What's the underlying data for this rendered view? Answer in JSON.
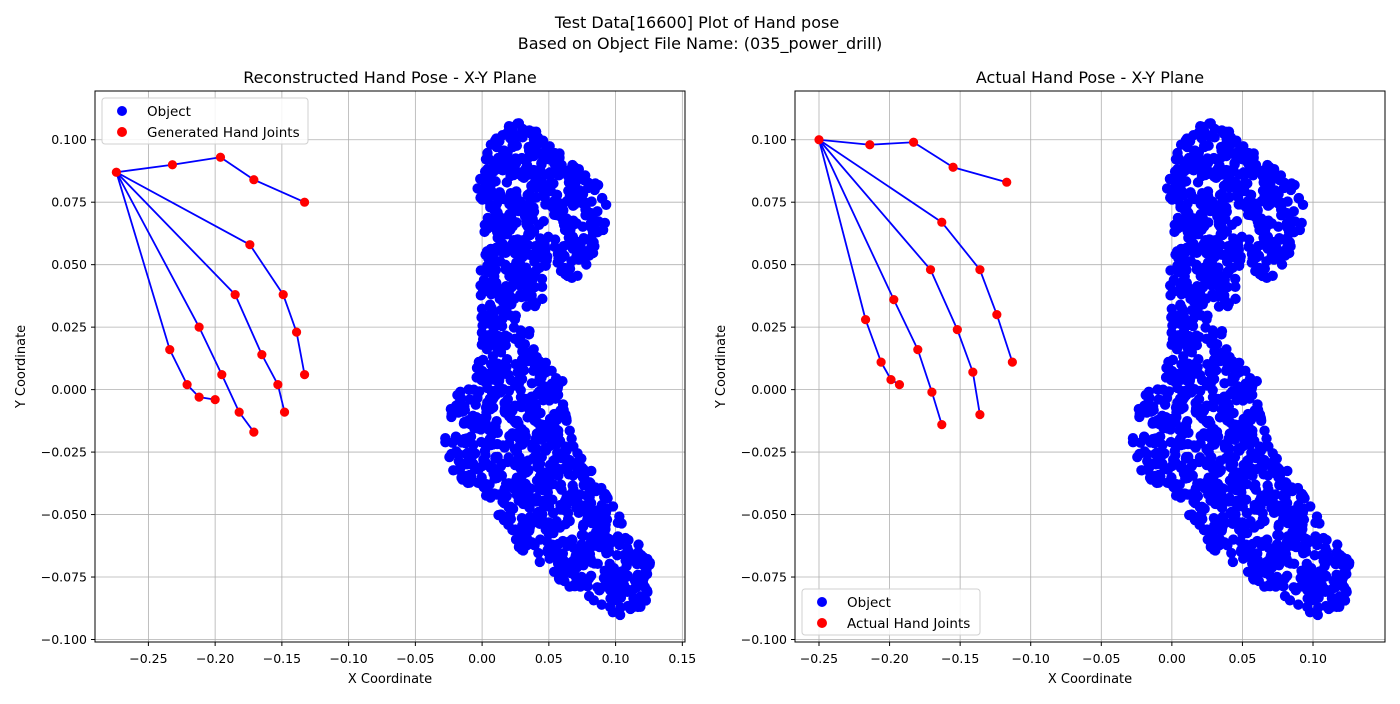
{
  "figure": {
    "title_line1": "Test Data[16600] Plot of Hand pose",
    "title_line2": "Based on Object File Name: (035_power_drill)"
  },
  "colors": {
    "object": "#0000ff",
    "joints": "#ff0000",
    "bones": "#0000ff",
    "grid": "#b0b0b0"
  },
  "chart_data": [
    {
      "type": "scatter",
      "title": "Reconstructed Hand Pose - X-Y Plane",
      "xlabel": "X Coordinate",
      "ylabel": "Y Coordinate",
      "xlim": [
        -0.29,
        0.152
      ],
      "ylim": [
        -0.101,
        0.1195
      ],
      "xticks": [
        -0.25,
        -0.2,
        -0.15,
        -0.1,
        -0.05,
        0.0,
        0.05,
        0.1,
        0.15
      ],
      "xtick_labels": [
        "−0.25",
        "−0.20",
        "−0.15",
        "−0.10",
        "−0.05",
        "0.00",
        "0.05",
        "0.10",
        "0.15"
      ],
      "yticks": [
        -0.1,
        -0.075,
        -0.05,
        -0.025,
        0.0,
        0.025,
        0.05,
        0.075,
        0.1
      ],
      "ytick_labels": [
        "−0.100",
        "−0.075",
        "−0.050",
        "−0.025",
        "0.000",
        "0.025",
        "0.050",
        "0.075",
        "0.100"
      ],
      "grid": true,
      "legend_position": "upper left",
      "legend": [
        "Object",
        "Generated Hand Joints"
      ],
      "series": [
        {
          "name": "Object",
          "color": "#0000ff",
          "kind": "object-point-cloud"
        },
        {
          "name": "Generated Hand Joints",
          "color": "#ff0000",
          "joints": [
            [
              -0.274,
              0.087
            ],
            [
              -0.232,
              0.09
            ],
            [
              -0.196,
              0.093
            ],
            [
              -0.171,
              0.084
            ],
            [
              -0.133,
              0.075
            ],
            [
              -0.174,
              0.058
            ],
            [
              -0.149,
              0.038
            ],
            [
              -0.139,
              0.023
            ],
            [
              -0.133,
              0.006
            ],
            [
              -0.185,
              0.038
            ],
            [
              -0.165,
              0.014
            ],
            [
              -0.153,
              0.002
            ],
            [
              -0.148,
              -0.009
            ],
            [
              -0.212,
              0.025
            ],
            [
              -0.195,
              0.006
            ],
            [
              -0.182,
              -0.009
            ],
            [
              -0.171,
              -0.017
            ],
            [
              -0.234,
              0.016
            ],
            [
              -0.221,
              0.002
            ],
            [
              -0.212,
              -0.003
            ],
            [
              -0.2,
              -0.004
            ]
          ],
          "bones": [
            [
              0,
              1
            ],
            [
              1,
              2
            ],
            [
              2,
              3
            ],
            [
              3,
              4
            ],
            [
              0,
              5
            ],
            [
              5,
              6
            ],
            [
              6,
              7
            ],
            [
              7,
              8
            ],
            [
              0,
              9
            ],
            [
              9,
              10
            ],
            [
              10,
              11
            ],
            [
              11,
              12
            ],
            [
              0,
              13
            ],
            [
              13,
              14
            ],
            [
              14,
              15
            ],
            [
              15,
              16
            ],
            [
              0,
              17
            ],
            [
              17,
              18
            ],
            [
              18,
              19
            ],
            [
              19,
              20
            ]
          ]
        }
      ]
    },
    {
      "type": "scatter",
      "title": "Actual Hand Pose - X-Y Plane",
      "xlabel": "X Coordinate",
      "ylabel": "Y Coordinate",
      "xlim": [
        -0.267,
        0.151
      ],
      "ylim": [
        -0.101,
        0.1195
      ],
      "xticks": [
        -0.25,
        -0.2,
        -0.15,
        -0.1,
        -0.05,
        0.0,
        0.05,
        0.1
      ],
      "xtick_labels": [
        "−0.25",
        "−0.20",
        "−0.15",
        "−0.10",
        "−0.05",
        "0.00",
        "0.05",
        "0.10"
      ],
      "yticks": [
        -0.1,
        -0.075,
        -0.05,
        -0.025,
        0.0,
        0.025,
        0.05,
        0.075,
        0.1
      ],
      "ytick_labels": [
        "−0.100",
        "−0.075",
        "−0.050",
        "−0.025",
        "0.000",
        "0.025",
        "0.050",
        "0.075",
        "0.100"
      ],
      "grid": true,
      "legend_position": "lower left",
      "legend": [
        "Object",
        "Actual Hand Joints"
      ],
      "series": [
        {
          "name": "Object",
          "color": "#0000ff",
          "kind": "object-point-cloud"
        },
        {
          "name": "Actual Hand Joints",
          "color": "#ff0000",
          "joints": [
            [
              -0.25,
              0.1
            ],
            [
              -0.214,
              0.098
            ],
            [
              -0.183,
              0.099
            ],
            [
              -0.155,
              0.089
            ],
            [
              -0.117,
              0.083
            ],
            [
              -0.163,
              0.067
            ],
            [
              -0.136,
              0.048
            ],
            [
              -0.124,
              0.03
            ],
            [
              -0.113,
              0.011
            ],
            [
              -0.171,
              0.048
            ],
            [
              -0.152,
              0.024
            ],
            [
              -0.141,
              0.007
            ],
            [
              -0.136,
              -0.01
            ],
            [
              -0.197,
              0.036
            ],
            [
              -0.18,
              0.016
            ],
            [
              -0.17,
              -0.001
            ],
            [
              -0.163,
              -0.014
            ],
            [
              -0.217,
              0.028
            ],
            [
              -0.206,
              0.011
            ],
            [
              -0.199,
              0.004
            ],
            [
              -0.193,
              0.002
            ]
          ],
          "bones": [
            [
              0,
              1
            ],
            [
              1,
              2
            ],
            [
              2,
              3
            ],
            [
              3,
              4
            ],
            [
              0,
              5
            ],
            [
              5,
              6
            ],
            [
              6,
              7
            ],
            [
              7,
              8
            ],
            [
              0,
              9
            ],
            [
              9,
              10
            ],
            [
              10,
              11
            ],
            [
              11,
              12
            ],
            [
              0,
              13
            ],
            [
              13,
              14
            ],
            [
              14,
              15
            ],
            [
              15,
              16
            ],
            [
              0,
              17
            ],
            [
              17,
              18
            ],
            [
              18,
              19
            ],
            [
              19,
              20
            ]
          ]
        }
      ]
    }
  ]
}
